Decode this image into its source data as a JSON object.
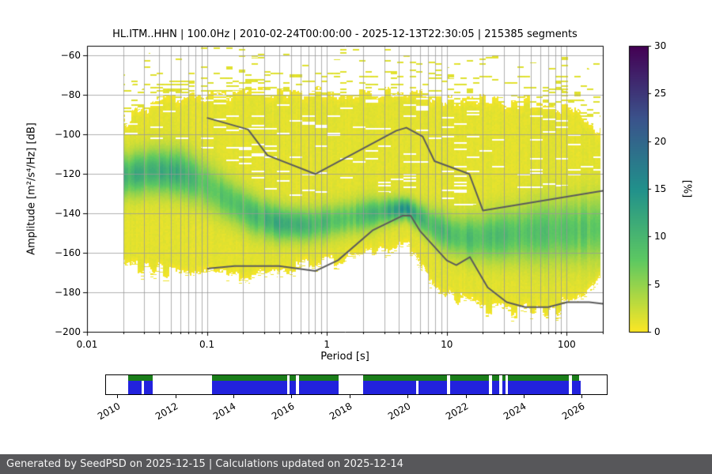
{
  "title": "HL.ITM..HHN | 100.0Hz | 2010-02-24T00:00:00 - 2025-12-13T22:30:05 | 215385 segments",
  "axes": {
    "xlabel": "Period [s]",
    "ylabel": "Amplitude [m²/s⁴/Hz] [dB]",
    "xlim": [
      0.01,
      200
    ],
    "ylim": [
      -200,
      -55
    ],
    "xticks": {
      "values": [
        0.01,
        0.1,
        1,
        10,
        100
      ],
      "labels": [
        "0.01",
        "0.1",
        "1",
        "10",
        "100"
      ]
    },
    "yticks": {
      "values": [
        -200,
        -180,
        -160,
        -140,
        -120,
        -100,
        -80,
        -60
      ],
      "labels": [
        "−200",
        "−180",
        "−160",
        "−140",
        "−120",
        "−100",
        "−80",
        "−60"
      ]
    }
  },
  "colorbar": {
    "label": "[%]",
    "min": 0,
    "max": 30,
    "ticks": [
      0,
      5,
      10,
      15,
      20,
      25,
      30
    ],
    "tick_labels": [
      "0",
      "5",
      "10",
      "15",
      "20",
      "25",
      "30"
    ],
    "gradient": [
      "#fde725",
      "#5ec962",
      "#21918c",
      "#3b528b",
      "#440154"
    ]
  },
  "chart_data": {
    "type": "heatmap",
    "description": "PPSD probability density (percent of segments) of seismic amplitude vs period, with Peterson NHNM/NLNM reference noise model curves drawn in gray",
    "x_axis": "Period [s], log scale 0.01 to 200",
    "y_axis": "Amplitude [m²/s⁴/Hz] [dB], -200 to -55",
    "grid": true,
    "noise_models": {
      "high_model": [
        [
          0.1,
          -91.5
        ],
        [
          0.22,
          -97.4
        ],
        [
          0.32,
          -110.5
        ],
        [
          0.8,
          -120
        ],
        [
          3.8,
          -98
        ],
        [
          4.6,
          -96.5
        ],
        [
          6.3,
          -101
        ],
        [
          7.9,
          -113.5
        ],
        [
          15.4,
          -120
        ],
        [
          20,
          -138.5
        ],
        [
          200,
          -128.5
        ]
      ],
      "low_model": [
        [
          0.1,
          -168
        ],
        [
          0.17,
          -166.7
        ],
        [
          0.4,
          -166.7
        ],
        [
          0.8,
          -169.2
        ],
        [
          1.24,
          -163.7
        ],
        [
          2.4,
          -148.6
        ],
        [
          4.3,
          -141.1
        ],
        [
          5,
          -141.1
        ],
        [
          6,
          -149
        ],
        [
          10,
          -163.8
        ],
        [
          12,
          -166.2
        ],
        [
          15.6,
          -162.1
        ],
        [
          21.9,
          -177.5
        ],
        [
          31.6,
          -185
        ],
        [
          45,
          -187.5
        ],
        [
          70,
          -187.5
        ],
        [
          101,
          -185
        ],
        [
          154,
          -185
        ],
        [
          200,
          -185.8
        ]
      ]
    },
    "density": {
      "period_range": [
        0.02,
        190
      ],
      "mode_curve": [
        [
          0.02,
          -121
        ],
        [
          0.035,
          -118.5
        ],
        [
          0.06,
          -119.5
        ],
        [
          0.09,
          -124
        ],
        [
          0.15,
          -133
        ],
        [
          0.25,
          -141
        ],
        [
          0.4,
          -145
        ],
        [
          0.7,
          -146
        ],
        [
          1.2,
          -143.5
        ],
        [
          2.2,
          -140.5
        ],
        [
          3.5,
          -138.5
        ],
        [
          4.6,
          -137.5
        ],
        [
          6,
          -142
        ],
        [
          8,
          -147
        ],
        [
          11,
          -151
        ],
        [
          16,
          -152.5
        ],
        [
          30,
          -151
        ],
        [
          60,
          -149.5
        ],
        [
          120,
          -148.5
        ],
        [
          190,
          -147.5
        ]
      ],
      "amp_curve": [
        [
          0.02,
          9.5
        ],
        [
          0.05,
          10
        ],
        [
          0.1,
          7
        ],
        [
          0.2,
          7.5
        ],
        [
          0.4,
          9.5
        ],
        [
          0.7,
          9
        ],
        [
          1.5,
          6.5
        ],
        [
          3,
          9.5
        ],
        [
          4.6,
          13
        ],
        [
          6,
          9.5
        ],
        [
          10,
          8
        ],
        [
          30,
          7.5
        ],
        [
          100,
          7
        ],
        [
          190,
          6.5
        ]
      ],
      "sigma_curve": [
        [
          0.02,
          7
        ],
        [
          0.1,
          8
        ],
        [
          0.5,
          5.5
        ],
        [
          2,
          5.5
        ],
        [
          4.6,
          3.5
        ],
        [
          8,
          6
        ],
        [
          20,
          8
        ],
        [
          60,
          10
        ],
        [
          190,
          11
        ]
      ],
      "top_curve": [
        [
          0.02,
          -93
        ],
        [
          0.03,
          -85
        ],
        [
          0.06,
          -81
        ],
        [
          0.15,
          -79
        ],
        [
          1,
          -78
        ],
        [
          6,
          -79
        ],
        [
          12,
          -82
        ],
        [
          60,
          -83
        ],
        [
          120,
          -88
        ],
        [
          190,
          -99
        ]
      ],
      "bottom_curve": [
        [
          0.02,
          -167
        ],
        [
          0.05,
          -171
        ],
        [
          0.15,
          -172
        ],
        [
          0.5,
          -168
        ],
        [
          1,
          -165
        ],
        [
          2,
          -161
        ],
        [
          4,
          -157
        ],
        [
          5.5,
          -160
        ],
        [
          7,
          -171
        ],
        [
          10,
          -180
        ],
        [
          15,
          -186
        ],
        [
          25,
          -189
        ],
        [
          70,
          -190
        ],
        [
          120,
          -186
        ],
        [
          160,
          -180
        ],
        [
          190,
          -171
        ]
      ],
      "background_pct": 1.2,
      "streak_density": 0.3,
      "streak_decay_db": 13
    }
  },
  "timeline": {
    "start": 2009.6,
    "end": 2026.85,
    "tick_years": [
      2010,
      2012,
      2014,
      2016,
      2018,
      2020,
      2022,
      2024,
      2026
    ],
    "tick_labels": [
      "2010",
      "2012",
      "2014",
      "2016",
      "2018",
      "2020",
      "2022",
      "2024",
      "2026"
    ],
    "green_color": "#1a7d1a",
    "blue_color": "#2222dd",
    "green_segments": [
      [
        2010.35,
        2011.2
      ],
      [
        2013.25,
        2015.85
      ],
      [
        2015.93,
        2016.15
      ],
      [
        2016.25,
        2017.6
      ],
      [
        2018.45,
        2021.35
      ],
      [
        2021.45,
        2022.8
      ],
      [
        2022.9,
        2023.15
      ],
      [
        2023.25,
        2023.35
      ],
      [
        2023.45,
        2025.55
      ],
      [
        2025.65,
        2025.9
      ]
    ],
    "blue_segments": [
      [
        2010.35,
        2010.82
      ],
      [
        2010.9,
        2011.2
      ],
      [
        2013.25,
        2015.85
      ],
      [
        2015.93,
        2016.15
      ],
      [
        2016.25,
        2017.6
      ],
      [
        2018.45,
        2020.28
      ],
      [
        2020.36,
        2021.35
      ],
      [
        2021.45,
        2022.8
      ],
      [
        2022.9,
        2023.15
      ],
      [
        2023.25,
        2023.35
      ],
      [
        2023.45,
        2025.55
      ],
      [
        2025.65,
        2025.95
      ]
    ]
  },
  "footer": {
    "text": "Generated by SeedPSD on 2025-12-15 | Calculations updated on 2025-12-14"
  }
}
